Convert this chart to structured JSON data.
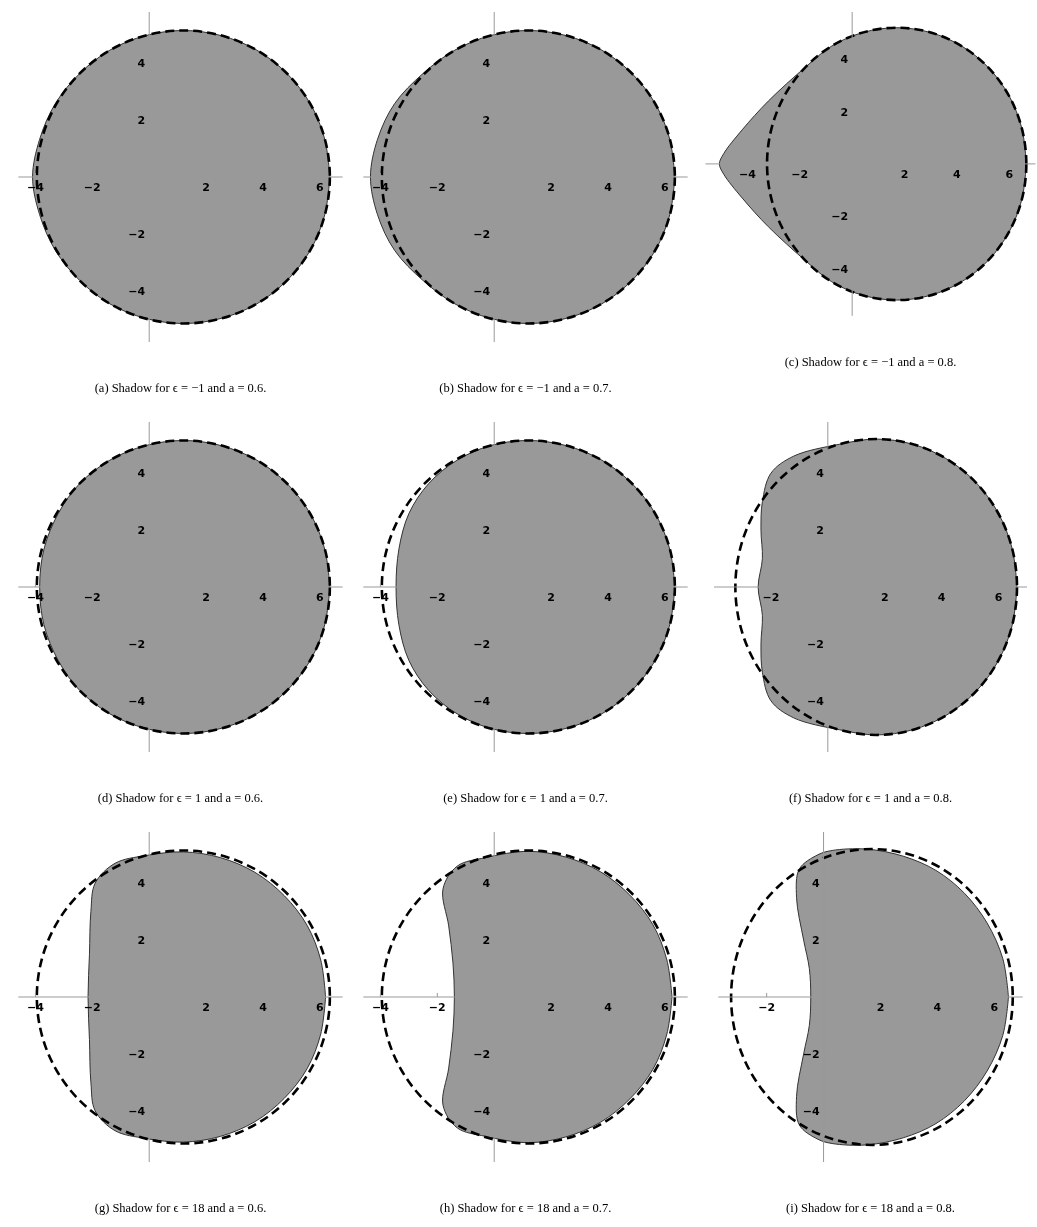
{
  "chart_data": [
    {
      "type": "line",
      "title": "(a)  Shadow for ϵ = −1 and a = 0.6.",
      "xlim": [
        -4.6,
        6.8
      ],
      "ylim": [
        -5.8,
        5.8
      ],
      "xticks": [
        -4,
        -2,
        2,
        4,
        6
      ],
      "yticks": [
        -4,
        -2,
        2,
        4
      ],
      "series": [
        {
          "type": "area",
          "color": "#999999",
          "x": [
            6.35,
            6.17,
            5.66,
            4.84,
            3.78,
            2.53,
            1.2,
            -0.13,
            -1.38,
            -2.44,
            -3.3,
            -3.85,
            -4.1,
            -3.85,
            -3.3,
            -2.44,
            -1.38,
            -0.13,
            1.2,
            2.53,
            3.78,
            4.84,
            5.66,
            6.17,
            6.35
          ],
          "values": [
            0,
            1.33,
            2.58,
            3.64,
            4.46,
            4.97,
            5.15,
            4.97,
            4.46,
            3.64,
            2.58,
            1.33,
            0,
            -1.33,
            -2.58,
            -3.64,
            -4.46,
            -4.97,
            -5.15,
            -4.97,
            -4.46,
            -3.64,
            -2.58,
            -1.33,
            0
          ]
        }
      ]
    },
    {
      "type": "line",
      "title": "(b)  Shadow for ϵ = −1 and a = 0.7.",
      "xlim": [
        -4.6,
        6.8
      ],
      "ylim": [
        -5.8,
        5.8
      ],
      "xticks": [
        -4,
        -2,
        2,
        4,
        6
      ],
      "yticks": [
        -4,
        -2,
        2,
        4
      ],
      "series": [
        {
          "type": "area",
          "color": "#999999",
          "x": [
            6.35,
            6.17,
            5.66,
            4.84,
            3.78,
            2.53,
            1.2,
            -0.13,
            -1.38,
            -2.5,
            -3.5,
            -4.1,
            -4.35,
            -4.1,
            -3.5,
            -2.5,
            -1.38,
            -0.13,
            1.2,
            2.53,
            3.78,
            4.84,
            5.66,
            6.17,
            6.35
          ],
          "values": [
            0,
            1.33,
            2.58,
            3.64,
            4.46,
            4.97,
            5.15,
            4.97,
            4.46,
            3.64,
            2.58,
            1.33,
            0,
            -1.33,
            -2.58,
            -3.64,
            -4.46,
            -4.97,
            -5.15,
            -4.97,
            -4.46,
            -3.64,
            -2.58,
            -1.33,
            0
          ]
        }
      ]
    },
    {
      "type": "line",
      "title": "(c)  Shadow for ϵ = −1 and a = 0.8.",
      "xlim": [
        -5.6,
        7.0
      ],
      "ylim": [
        -5.8,
        5.8
      ],
      "xticks": [
        -4,
        -2,
        2,
        4,
        6
      ],
      "yticks": [
        -4,
        -2,
        2,
        4
      ],
      "series": [
        {
          "type": "area",
          "color": "#999999",
          "x": [
            6.65,
            6.48,
            5.99,
            5.2,
            4.18,
            2.98,
            1.7,
            0.42,
            -0.78,
            -1.8,
            -3.2,
            -4.2,
            -4.9,
            -5.07,
            -4.9,
            -4.2,
            -3.2,
            -1.8,
            -0.78,
            0.42,
            1.7,
            2.98,
            4.18,
            5.2,
            5.99,
            6.48,
            6.65
          ],
          "values": [
            0,
            1.35,
            2.6,
            3.68,
            4.5,
            5.02,
            5.2,
            5.02,
            4.5,
            3.68,
            2.4,
            1.3,
            0.4,
            0,
            -0.4,
            -1.3,
            -2.4,
            -3.68,
            -4.5,
            -5.02,
            -5.2,
            -5.02,
            -4.5,
            -3.68,
            -2.6,
            -1.35,
            0
          ]
        }
      ]
    },
    {
      "type": "line",
      "title": "(d)  Shadow for ϵ = 1 and a = 0.6.",
      "xlim": [
        -4.6,
        6.8
      ],
      "ylim": [
        -5.8,
        5.8
      ],
      "xticks": [
        -4,
        -2,
        2,
        4,
        6
      ],
      "yticks": [
        -4,
        -2,
        2,
        4
      ],
      "series": [
        {
          "type": "area",
          "color": "#999999",
          "x": [
            6.35,
            6.17,
            5.66,
            4.84,
            3.78,
            2.53,
            1.2,
            -0.13,
            -1.38,
            -2.44,
            -3.2,
            -3.7,
            -3.85,
            -3.7,
            -3.2,
            -2.44,
            -1.38,
            -0.13,
            1.2,
            2.53,
            3.78,
            4.84,
            5.66,
            6.17,
            6.35
          ],
          "values": [
            0,
            1.33,
            2.58,
            3.64,
            4.46,
            4.97,
            5.15,
            4.97,
            4.46,
            3.64,
            2.58,
            1.33,
            0,
            -1.33,
            -2.58,
            -3.64,
            -4.46,
            -4.97,
            -5.15,
            -4.97,
            -4.46,
            -3.64,
            -2.58,
            -1.33,
            0
          ]
        }
      ]
    },
    {
      "type": "line",
      "title": "(e)  Shadow for ϵ = 1 and a = 0.7.",
      "xlim": [
        -4.6,
        6.8
      ],
      "ylim": [
        -5.8,
        5.8
      ],
      "xticks": [
        -4,
        -2,
        2,
        4,
        6
      ],
      "yticks": [
        -4,
        -2,
        2,
        4
      ],
      "series": [
        {
          "type": "area",
          "color": "#999999",
          "x": [
            6.35,
            6.17,
            5.66,
            4.84,
            3.78,
            2.53,
            1.2,
            -0.13,
            -1.3,
            -2.3,
            -3.0,
            -3.35,
            -3.45,
            -3.35,
            -3.0,
            -2.3,
            -1.3,
            -0.13,
            1.2,
            2.53,
            3.78,
            4.84,
            5.66,
            6.17,
            6.35
          ],
          "values": [
            0,
            1.33,
            2.58,
            3.64,
            4.46,
            4.97,
            5.15,
            4.97,
            4.46,
            3.64,
            2.58,
            1.33,
            0,
            -1.33,
            -2.58,
            -3.64,
            -4.46,
            -4.97,
            -5.15,
            -4.97,
            -4.46,
            -3.64,
            -2.58,
            -1.33,
            0
          ]
        }
      ]
    },
    {
      "type": "line",
      "title": "(f)  Shadow for ϵ = 1 and a = 0.8.",
      "xlim": [
        -4.0,
        7.0
      ],
      "ylim": [
        -5.8,
        5.8
      ],
      "xticks": [
        -2,
        2,
        4,
        6
      ],
      "yticks": [
        -4,
        -2,
        2,
        4
      ],
      "series": [
        {
          "type": "area",
          "color": "#999999",
          "x": [
            6.65,
            6.48,
            5.99,
            5.2,
            4.18,
            2.98,
            1.7,
            0.42,
            -1.2,
            -2.0,
            -2.3,
            -2.35,
            -2.3,
            -2.45,
            -2.3,
            -2.35,
            -2.3,
            -2.0,
            -1.2,
            0.42,
            1.7,
            2.98,
            4.18,
            5.2,
            5.99,
            6.48,
            6.65
          ],
          "values": [
            0,
            1.35,
            2.6,
            3.68,
            4.5,
            5.02,
            5.2,
            5.02,
            4.6,
            4.0,
            3.0,
            2.0,
            1.0,
            0,
            -1.0,
            -2.0,
            -3.0,
            -4.0,
            -4.6,
            -5.02,
            -5.2,
            -5.02,
            -4.5,
            -3.68,
            -2.6,
            -1.35,
            0
          ]
        }
      ]
    },
    {
      "type": "line",
      "title": "(g)  Shadow for ϵ = 18 and a = 0.6.",
      "xlim": [
        -4.6,
        6.8
      ],
      "ylim": [
        -5.8,
        5.8
      ],
      "xticks": [
        -4,
        -2,
        2,
        4,
        6
      ],
      "yticks": [
        -4,
        -2,
        2,
        4
      ],
      "series": [
        {
          "type": "area",
          "color": "#999999",
          "x": [
            6.2,
            6.03,
            5.55,
            4.75,
            3.72,
            2.5,
            1.2,
            -0.13,
            -1.2,
            -1.9,
            -2.05,
            -2.1,
            -2.15,
            -2.1,
            -2.05,
            -1.9,
            -1.2,
            -0.13,
            1.2,
            2.5,
            3.72,
            4.75,
            5.55,
            6.03,
            6.2
          ],
          "values": [
            0,
            1.3,
            2.52,
            3.56,
            4.38,
            4.9,
            5.1,
            4.97,
            4.7,
            4.0,
            3.0,
            1.5,
            0,
            -1.5,
            -3.0,
            -4.0,
            -4.7,
            -4.97,
            -5.1,
            -4.9,
            -4.38,
            -3.56,
            -2.52,
            -1.3,
            0
          ]
        }
      ]
    },
    {
      "type": "line",
      "title": "(h)  Shadow for ϵ = 18 and a = 0.7.",
      "xlim": [
        -4.6,
        6.8
      ],
      "ylim": [
        -5.8,
        5.8
      ],
      "xticks": [
        -4,
        -2,
        2,
        4,
        6
      ],
      "yticks": [
        -4,
        -2,
        2,
        4
      ],
      "series": [
        {
          "type": "area",
          "color": "#999999",
          "x": [
            6.25,
            6.07,
            5.58,
            4.77,
            3.74,
            2.51,
            1.2,
            -0.3,
            -1.3,
            -1.8,
            -1.6,
            -1.45,
            -1.4,
            -1.45,
            -1.6,
            -1.8,
            -1.3,
            -0.3,
            1.2,
            2.51,
            3.74,
            4.77,
            5.58,
            6.07,
            6.25
          ],
          "values": [
            0,
            1.3,
            2.54,
            3.58,
            4.4,
            4.92,
            5.12,
            4.9,
            4.6,
            3.8,
            2.5,
            1.2,
            0,
            -1.2,
            -2.5,
            -3.8,
            -4.6,
            -4.9,
            -5.12,
            -4.92,
            -4.4,
            -3.58,
            -2.54,
            -1.3,
            0
          ]
        }
      ]
    },
    {
      "type": "line",
      "title": "(i)  Shadow for ϵ = 18 and a = 0.8.",
      "xlim": [
        -3.7,
        7.0
      ],
      "ylim": [
        -5.8,
        5.8
      ],
      "xticks": [
        -2,
        2,
        4,
        6
      ],
      "yticks": [
        -4,
        -2,
        2,
        4
      ],
      "series": [
        {
          "type": "area",
          "color": "#999999",
          "x": [
            6.5,
            6.3,
            5.75,
            4.95,
            3.95,
            2.8,
            1.5,
            0.3,
            -0.2,
            -0.85,
            -0.95,
            -0.7,
            -0.5,
            -0.45,
            -0.5,
            -0.7,
            -0.95,
            -0.85,
            -0.2,
            0.3,
            1.5,
            2.8,
            3.95,
            4.95,
            5.75,
            6.3,
            6.5
          ],
          "values": [
            0,
            1.35,
            2.6,
            3.65,
            4.45,
            4.95,
            5.2,
            5.15,
            5.0,
            4.5,
            3.5,
            2.0,
            1.0,
            0,
            -1.0,
            -2.0,
            -3.5,
            -4.5,
            -5.0,
            -5.15,
            -5.2,
            -4.95,
            -4.45,
            -3.65,
            -2.6,
            -1.35,
            0
          ]
        }
      ]
    }
  ]
}
